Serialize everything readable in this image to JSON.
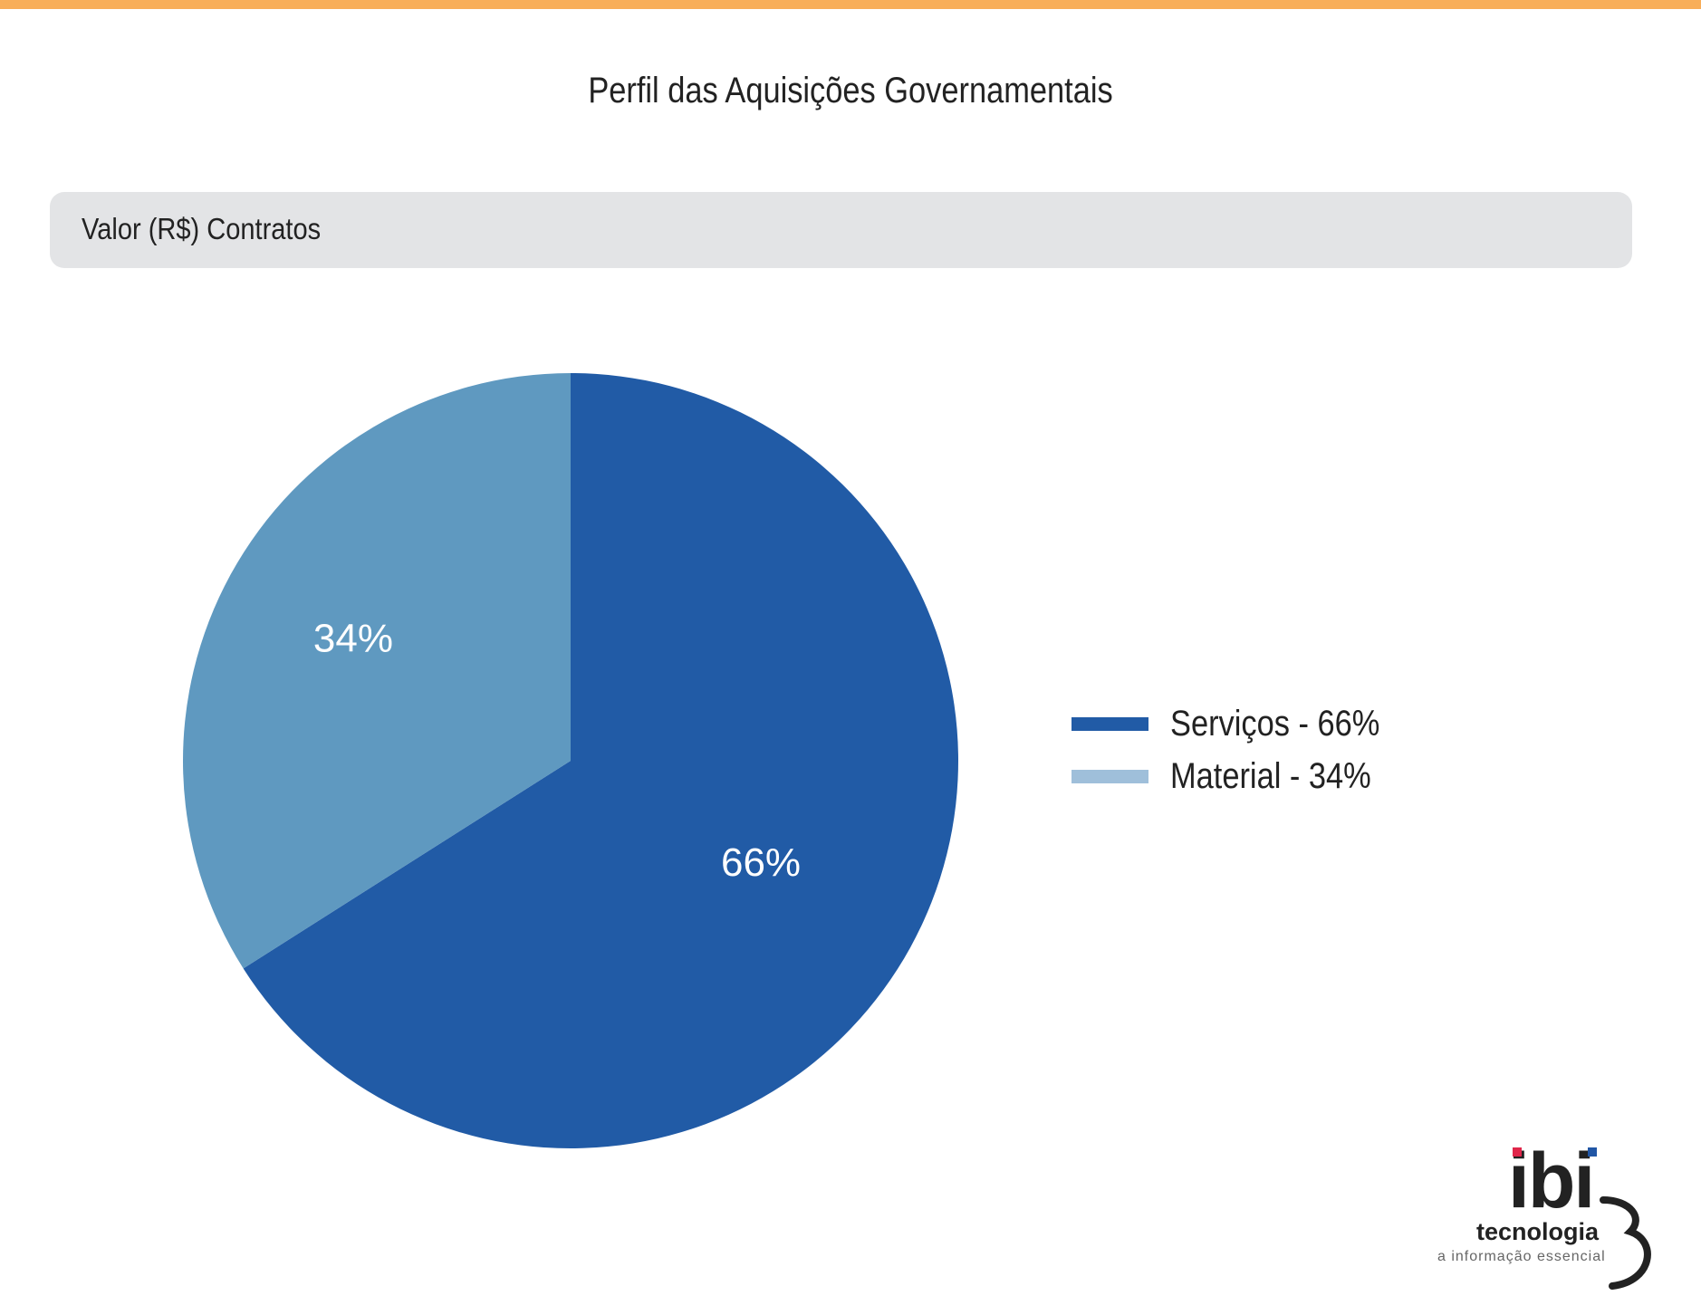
{
  "page": {
    "title": "Perfil das Aquisições Governamentais",
    "section_label": "Valor (R$) Contratos",
    "accent_color": "#f8ae59"
  },
  "chart_data": {
    "type": "pie",
    "title": "Perfil das Aquisições Governamentais",
    "subtitle": "Valor (R$) Contratos",
    "slices": [
      {
        "name": "Serviços",
        "value": 66,
        "label": "66%",
        "legend": "Serviços - 66%",
        "color": "#215ba6",
        "legend_color": "#215ba6"
      },
      {
        "name": "Material",
        "value": 34,
        "label": "34%",
        "legend": "Material - 34%",
        "color": "#5f99c0",
        "legend_color": "#9fbfda"
      }
    ],
    "legend_placement": "right"
  },
  "logo": {
    "name": "ibi",
    "tagline_1": "tecnologia",
    "tagline_2": "a informação essencial",
    "dot_colors": [
      "#e0264a",
      "#2156a5"
    ]
  }
}
